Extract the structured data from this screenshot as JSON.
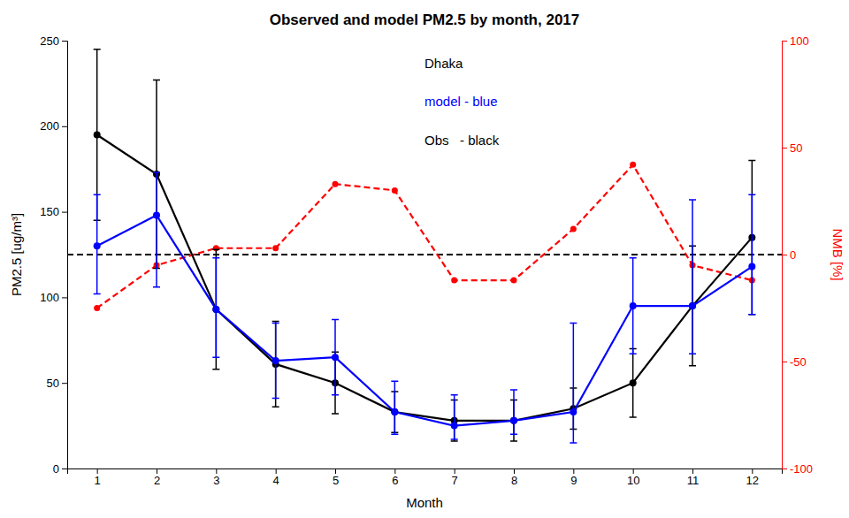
{
  "chart_data": {
    "type": "line",
    "title": "Observed and model PM2.5 by month, 2017",
    "xlabel": "Month",
    "ylabel": "PM2.5 [ug/m³]",
    "y2label": "NMB [%]",
    "x": [
      1,
      2,
      3,
      4,
      5,
      6,
      7,
      8,
      9,
      10,
      11,
      12
    ],
    "xlim": [
      0.5,
      12.5
    ],
    "xticks": [
      1,
      2,
      3,
      4,
      5,
      6,
      7,
      8,
      9,
      10,
      11,
      12
    ],
    "ylim": [
      0,
      250
    ],
    "yticks": [
      0,
      50,
      100,
      150,
      200,
      250
    ],
    "y2lim": [
      -100,
      100
    ],
    "y2ticks": [
      -100,
      -50,
      0,
      50,
      100
    ],
    "grid": false,
    "series": [
      {
        "type": "line",
        "color": "black",
        "marker": "circle",
        "line_style": "solid",
        "values": [
          195,
          172,
          93,
          61,
          50,
          33,
          28,
          28,
          35,
          50,
          95,
          135
        ],
        "error_upper": [
          50,
          55,
          35,
          25,
          18,
          12,
          12,
          12,
          12,
          20,
          35,
          45
        ],
        "error_lower": [
          50,
          55,
          35,
          25,
          18,
          12,
          12,
          12,
          12,
          20,
          35,
          45
        ]
      },
      {
        "type": "line",
        "color": "blue",
        "marker": "circle",
        "line_style": "solid",
        "values": [
          130,
          148,
          93,
          63,
          65,
          33,
          25,
          28,
          33,
          95,
          95,
          118
        ],
        "error_upper": [
          30,
          25,
          30,
          22,
          22,
          18,
          18,
          18,
          52,
          28,
          62,
          42
        ],
        "error_lower": [
          28,
          42,
          28,
          22,
          22,
          13,
          8,
          8,
          18,
          28,
          28,
          28
        ]
      },
      {
        "type": "line",
        "color": "red",
        "marker": "circle",
        "line_style": "dashed",
        "axis": "y2",
        "values": [
          -25,
          -5,
          3,
          3,
          33,
          30,
          -12,
          -12,
          12,
          42,
          -5,
          -12
        ]
      }
    ],
    "reference_lines": [
      {
        "axis": "y",
        "value": 125,
        "color": "black",
        "line_style": "dashed"
      }
    ],
    "annotations": [
      {
        "text": "Dhaka",
        "color": "black"
      },
      {
        "text": "model - blue",
        "color": "blue"
      },
      {
        "text": "Obs   - black",
        "color": "black"
      }
    ]
  }
}
